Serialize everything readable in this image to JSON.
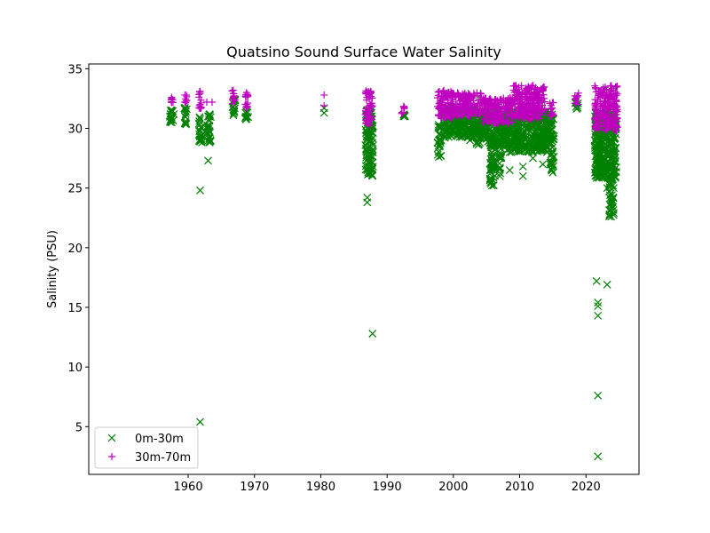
{
  "chart_data": {
    "type": "scatter",
    "title": "Quatsino Sound Surface Water Salinity",
    "xlabel": "",
    "ylabel": "Salinity (PSU)",
    "xlim": [
      1945,
      2028
    ],
    "ylim": [
      1,
      35.4
    ],
    "xticks": [
      1960,
      1970,
      1980,
      1990,
      2000,
      2010,
      2020
    ],
    "yticks": [
      5,
      10,
      15,
      20,
      25,
      30,
      35
    ],
    "grid": false,
    "legend_position": "lower-left",
    "series": [
      {
        "name": "0m-30m",
        "marker": "x",
        "color": "#008000",
        "points": [
          [
            1957.5,
            31.4
          ],
          [
            1957.5,
            30.9
          ],
          [
            1957.5,
            30.5
          ],
          [
            1959.5,
            31.6
          ],
          [
            1959.5,
            31.0
          ],
          [
            1959.5,
            30.4
          ],
          [
            1961.8,
            30.8
          ],
          [
            1961.8,
            29.8
          ],
          [
            1961.8,
            28.9
          ],
          [
            1961.8,
            24.8
          ],
          [
            1961.8,
            5.4
          ],
          [
            1963.0,
            31.0
          ],
          [
            1963.0,
            29.5
          ],
          [
            1963.0,
            27.3
          ],
          [
            1966.8,
            32.1
          ],
          [
            1966.8,
            31.1
          ],
          [
            1968.8,
            31.4
          ],
          [
            1968.8,
            30.8
          ],
          [
            1980.5,
            31.7
          ],
          [
            1980.5,
            31.3
          ],
          [
            1987.0,
            31.5
          ],
          [
            1987.0,
            29.0
          ],
          [
            1987.0,
            26.5
          ],
          [
            1987.0,
            24.2
          ],
          [
            1987.0,
            23.8
          ],
          [
            1987.8,
            30.0
          ],
          [
            1987.8,
            28.8
          ],
          [
            1987.8,
            12.8
          ],
          [
            1992.5,
            31.0
          ],
          [
            1997.8,
            29.5
          ],
          [
            1997.8,
            27.6
          ],
          [
            2000.0,
            31.2
          ],
          [
            2000.0,
            30.0
          ],
          [
            2002.5,
            30.8
          ],
          [
            2002.5,
            29.0
          ],
          [
            2004.0,
            30.2
          ],
          [
            2004.0,
            28.8
          ],
          [
            2005.8,
            27.0
          ],
          [
            2005.8,
            25.5
          ],
          [
            2005.8,
            25.2
          ],
          [
            2007.0,
            27.5
          ],
          [
            2007.0,
            26.0
          ],
          [
            2008.5,
            28.0
          ],
          [
            2008.5,
            26.5
          ],
          [
            2010.5,
            26.8
          ],
          [
            2010.5,
            26.0
          ],
          [
            2012.0,
            28.0
          ],
          [
            2012.0,
            27.5
          ],
          [
            2013.5,
            28.5
          ],
          [
            2013.5,
            27.0
          ],
          [
            2015.0,
            27.0
          ],
          [
            2015.0,
            26.3
          ],
          [
            2018.5,
            31.8
          ],
          [
            2021.6,
            26.0
          ],
          [
            2021.6,
            17.2
          ],
          [
            2021.8,
            15.4
          ],
          [
            2021.8,
            15.1
          ],
          [
            2021.8,
            14.3
          ],
          [
            2021.8,
            7.6
          ],
          [
            2021.8,
            2.5
          ],
          [
            2023.2,
            25.0
          ],
          [
            2023.2,
            16.9
          ],
          [
            2023.8,
            24.0
          ],
          [
            2023.8,
            22.6
          ]
        ],
        "clusters": [
          {
            "x": [
              1957.2,
              1957.9
            ],
            "y": [
              30.4,
              31.6
            ]
          },
          {
            "x": [
              1959.4,
              1959.8
            ],
            "y": [
              30.3,
              31.8
            ]
          },
          {
            "x": [
              1961.6,
              1962.1
            ],
            "y": [
              28.8,
              31.2
            ]
          },
          {
            "x": [
              1962.8,
              1963.4
            ],
            "y": [
              28.8,
              31.4
            ]
          },
          {
            "x": [
              1966.6,
              1967.1
            ],
            "y": [
              31.0,
              32.5
            ]
          },
          {
            "x": [
              1968.6,
              1969.1
            ],
            "y": [
              30.7,
              31.8
            ]
          },
          {
            "x": [
              1986.7,
              1987.9
            ],
            "y": [
              26.0,
              31.5
            ]
          },
          {
            "x": [
              1992.2,
              1992.7
            ],
            "y": [
              30.8,
              31.3
            ]
          },
          {
            "x": [
              1997.6,
              1998.2
            ],
            "y": [
              27.6,
              30.4
            ]
          },
          {
            "x": [
              1998.5,
              2003.5
            ],
            "y": [
              29.2,
              31.8
            ]
          },
          {
            "x": [
              2003.5,
              2008.0
            ],
            "y": [
              28.6,
              31.5
            ]
          },
          {
            "x": [
              2005.5,
              2006.3
            ],
            "y": [
              25.2,
              29.0
            ]
          },
          {
            "x": [
              2006.8,
              2007.3
            ],
            "y": [
              26.0,
              29.0
            ]
          },
          {
            "x": [
              2008.0,
              2014.5
            ],
            "y": [
              28.0,
              31.4
            ]
          },
          {
            "x": [
              2014.6,
              2015.2
            ],
            "y": [
              26.3,
              31.4
            ]
          },
          {
            "x": [
              2018.3,
              2018.9
            ],
            "y": [
              31.6,
              32.2
            ]
          },
          {
            "x": [
              2021.3,
              2024.6
            ],
            "y": [
              25.8,
              31.4
            ]
          },
          {
            "x": [
              2023.5,
              2024.2
            ],
            "y": [
              22.6,
              26.0
            ]
          }
        ]
      },
      {
        "name": "30m-70m",
        "marker": "+",
        "color": "#bf00bf",
        "points": [
          [
            1957.5,
            32.6
          ],
          [
            1957.5,
            32.2
          ],
          [
            1959.5,
            32.8
          ],
          [
            1959.5,
            32.2
          ],
          [
            1961.8,
            33.1
          ],
          [
            1961.8,
            32.0
          ],
          [
            1962.8,
            32.2
          ],
          [
            1963.6,
            32.2
          ],
          [
            1966.8,
            33.2
          ],
          [
            1966.8,
            32.3
          ],
          [
            1968.8,
            33.0
          ],
          [
            1968.8,
            32.0
          ],
          [
            1980.5,
            32.8
          ],
          [
            1980.5,
            31.9
          ],
          [
            1992.5,
            31.8
          ]
        ],
        "clusters": [
          {
            "x": [
              1957.3,
              1957.8
            ],
            "y": [
              32.0,
              32.6
            ]
          },
          {
            "x": [
              1959.4,
              1959.8
            ],
            "y": [
              31.9,
              32.8
            ]
          },
          {
            "x": [
              1961.6,
              1962.1
            ],
            "y": [
              31.6,
              33.1
            ]
          },
          {
            "x": [
              1966.6,
              1967.1
            ],
            "y": [
              32.0,
              33.2
            ]
          },
          {
            "x": [
              1968.6,
              1969.1
            ],
            "y": [
              31.6,
              33.0
            ]
          },
          {
            "x": [
              1986.7,
              1987.8
            ],
            "y": [
              30.2,
              33.2
            ]
          },
          {
            "x": [
              1992.2,
              1992.7
            ],
            "y": [
              31.2,
              31.9
            ]
          },
          {
            "x": [
              1997.6,
              2000.0
            ],
            "y": [
              30.8,
              33.2
            ]
          },
          {
            "x": [
              2000.0,
              2004.5
            ],
            "y": [
              31.0,
              33.0
            ]
          },
          {
            "x": [
              2004.5,
              2009.0
            ],
            "y": [
              30.4,
              32.6
            ]
          },
          {
            "x": [
              2009.0,
              2013.8
            ],
            "y": [
              30.8,
              33.6
            ]
          },
          {
            "x": [
              2014.5,
              2015.2
            ],
            "y": [
              31.0,
              32.2
            ]
          },
          {
            "x": [
              2018.3,
              2018.9
            ],
            "y": [
              32.0,
              33.0
            ]
          },
          {
            "x": [
              2021.3,
              2024.8
            ],
            "y": [
              29.8,
              33.6
            ]
          }
        ]
      }
    ]
  }
}
